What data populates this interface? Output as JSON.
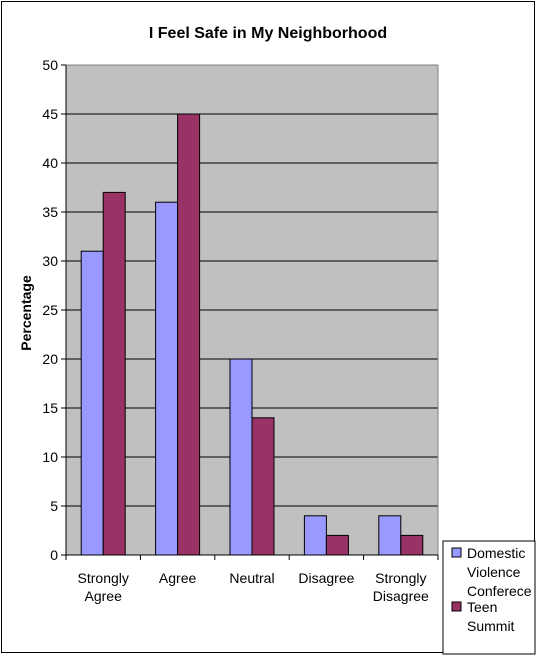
{
  "chart_data": {
    "type": "bar",
    "title": "I Feel Safe in My Neighborhood",
    "ylabel": "Percentage",
    "xlabel": "",
    "categories": [
      [
        "Strongly",
        "Agree"
      ],
      [
        "Agree"
      ],
      [
        "Neutral"
      ],
      [
        "Disagree"
      ],
      [
        "Strongly",
        "Disagree"
      ]
    ],
    "series": [
      {
        "name": [
          "Domestic",
          "Violence",
          "Conferece"
        ],
        "color": "#9999ff",
        "values": [
          31,
          36,
          20,
          4,
          4
        ]
      },
      {
        "name": [
          "Teen",
          "Summit"
        ],
        "color": "#993366",
        "values": [
          37,
          45,
          14,
          2,
          2
        ]
      }
    ],
    "ylim": [
      0,
      50
    ],
    "yticks": [
      0,
      5,
      10,
      15,
      20,
      25,
      30,
      35,
      40,
      45,
      50
    ],
    "grid": true,
    "plot_background": "#c0c0c0",
    "legend_position": "bottom-right"
  }
}
